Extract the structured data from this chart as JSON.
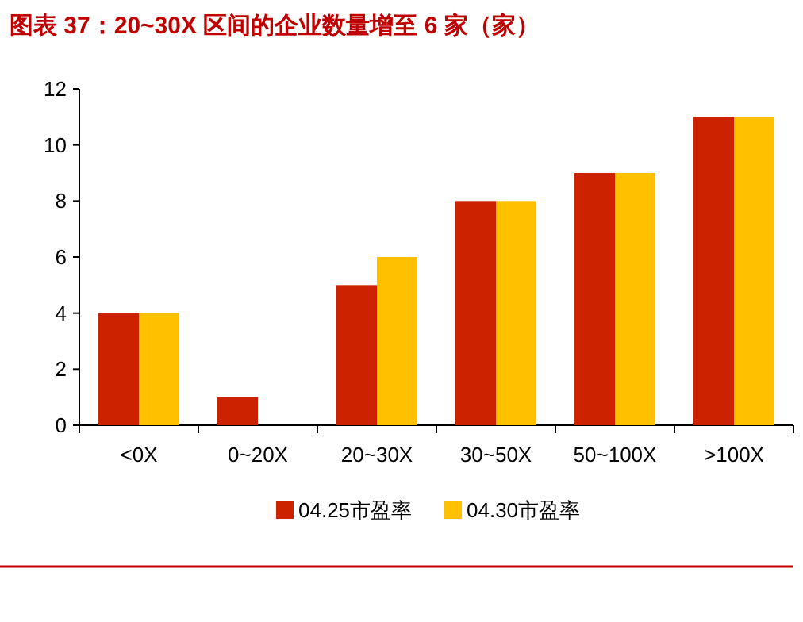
{
  "chart_data": {
    "type": "bar",
    "title": "图表 37：20~30X 区间的企业数量增至 6 家（家）",
    "categories": [
      "<0X",
      "0~20X",
      "20~30X",
      "30~50X",
      "50~100X",
      ">100X"
    ],
    "series": [
      {
        "name": "04.25市盈率",
        "color": "#cc2200",
        "values": [
          4,
          1,
          5,
          8,
          9,
          11
        ]
      },
      {
        "name": "04.30市盈率",
        "color": "#ffc000",
        "values": [
          4,
          0,
          6,
          8,
          9,
          11
        ]
      }
    ],
    "ylim": [
      0,
      12
    ],
    "yticks": [
      0,
      2,
      4,
      6,
      8,
      10,
      12
    ],
    "grid": false,
    "legend": "bottom"
  }
}
